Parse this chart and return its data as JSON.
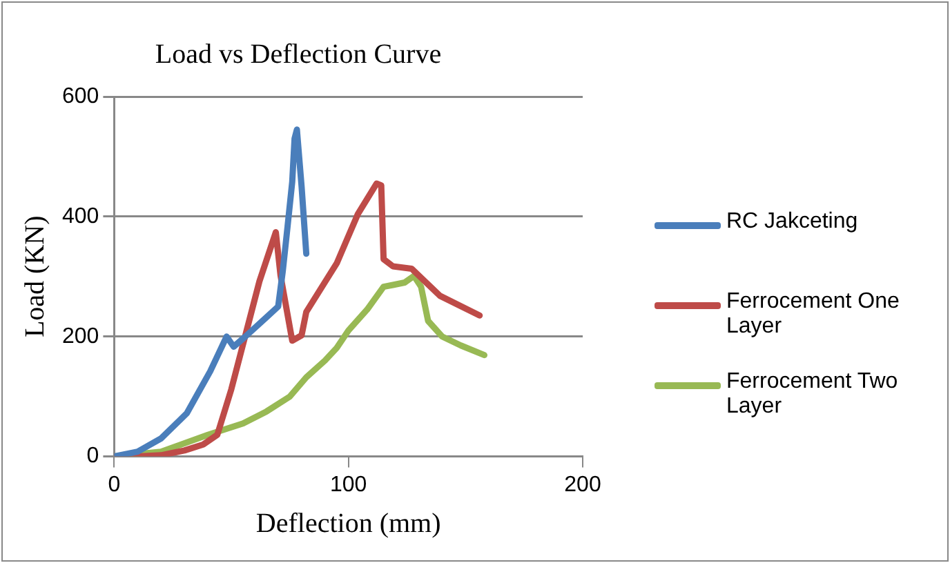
{
  "chart_data": {
    "type": "line",
    "title": "Load vs Deflection Curve",
    "xlabel": "Deflection (mm)",
    "ylabel": "Load (KN)",
    "xlim": [
      0,
      200
    ],
    "xticks": [
      0,
      100,
      200
    ],
    "ylim": [
      0,
      600
    ],
    "yticks": [
      0,
      200,
      400,
      600
    ],
    "grid": "y",
    "legend": "right",
    "marker": "none",
    "line_style": "solid",
    "series": [
      {
        "name": "RC Jakceting",
        "color": "#4a7ebb",
        "x": [
          0,
          10,
          20,
          31,
          41,
          48,
          51,
          56,
          65,
          70,
          72,
          74,
          76,
          77,
          78,
          80,
          82
        ],
        "values": [
          0,
          8,
          30,
          72,
          142,
          200,
          183,
          200,
          232,
          250,
          310,
          383,
          458,
          530,
          545,
          450,
          338
        ]
      },
      {
        "name": "Ferrocement One Layer",
        "color": "#be4b48",
        "x": [
          0,
          10,
          20,
          30,
          38,
          44,
          50,
          56,
          62,
          69,
          71,
          76,
          80,
          82,
          95,
          104,
          112,
          114,
          115,
          119,
          127,
          139,
          156
        ],
        "values": [
          0,
          0,
          2,
          10,
          20,
          36,
          112,
          202,
          292,
          374,
          302,
          193,
          202,
          241,
          322,
          404,
          455,
          452,
          329,
          317,
          313,
          268,
          235
        ]
      },
      {
        "name": "Ferrocement Two Layer",
        "color": "#98b954",
        "x": [
          0,
          20,
          40,
          55,
          65,
          75,
          82,
          90,
          95,
          100,
          108,
          115,
          119,
          124,
          128,
          131,
          134,
          140,
          148,
          158
        ],
        "values": [
          0,
          8,
          36,
          55,
          75,
          100,
          132,
          160,
          181,
          210,
          245,
          283,
          286,
          290,
          301,
          283,
          226,
          200,
          185,
          169
        ]
      }
    ]
  }
}
